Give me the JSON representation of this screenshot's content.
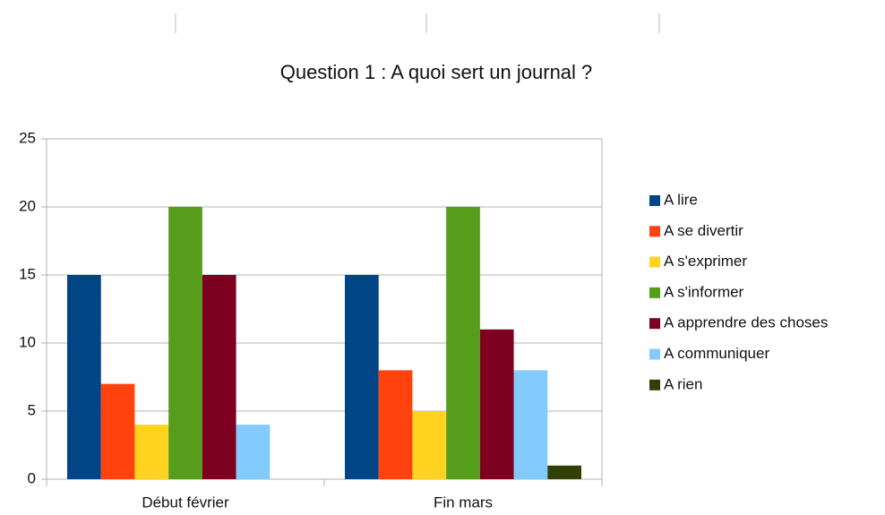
{
  "chart_data": {
    "type": "bar",
    "title": "Question 1 : A quoi sert un journal ?",
    "categories": [
      "Début février",
      "Fin mars"
    ],
    "series": [
      {
        "name": "A lire",
        "color": "#004586",
        "values": [
          15,
          15
        ]
      },
      {
        "name": "A se divertir",
        "color": "#ff420e",
        "values": [
          7,
          8
        ]
      },
      {
        "name": "A s'exprimer",
        "color": "#ffd320",
        "values": [
          4,
          5
        ]
      },
      {
        "name": "A s'informer",
        "color": "#579d1c",
        "values": [
          20,
          20
        ]
      },
      {
        "name": "A apprendre des choses",
        "color": "#7e0021",
        "values": [
          15,
          11
        ]
      },
      {
        "name": "A communiquer",
        "color": "#83caff",
        "values": [
          4,
          8
        ]
      },
      {
        "name": "A rien",
        "color": "#314004",
        "values": [
          0,
          1
        ]
      }
    ],
    "ylim": [
      0,
      25
    ],
    "yticks": [
      0,
      5,
      10,
      15,
      20,
      25
    ],
    "grid": true,
    "legend": "right"
  }
}
